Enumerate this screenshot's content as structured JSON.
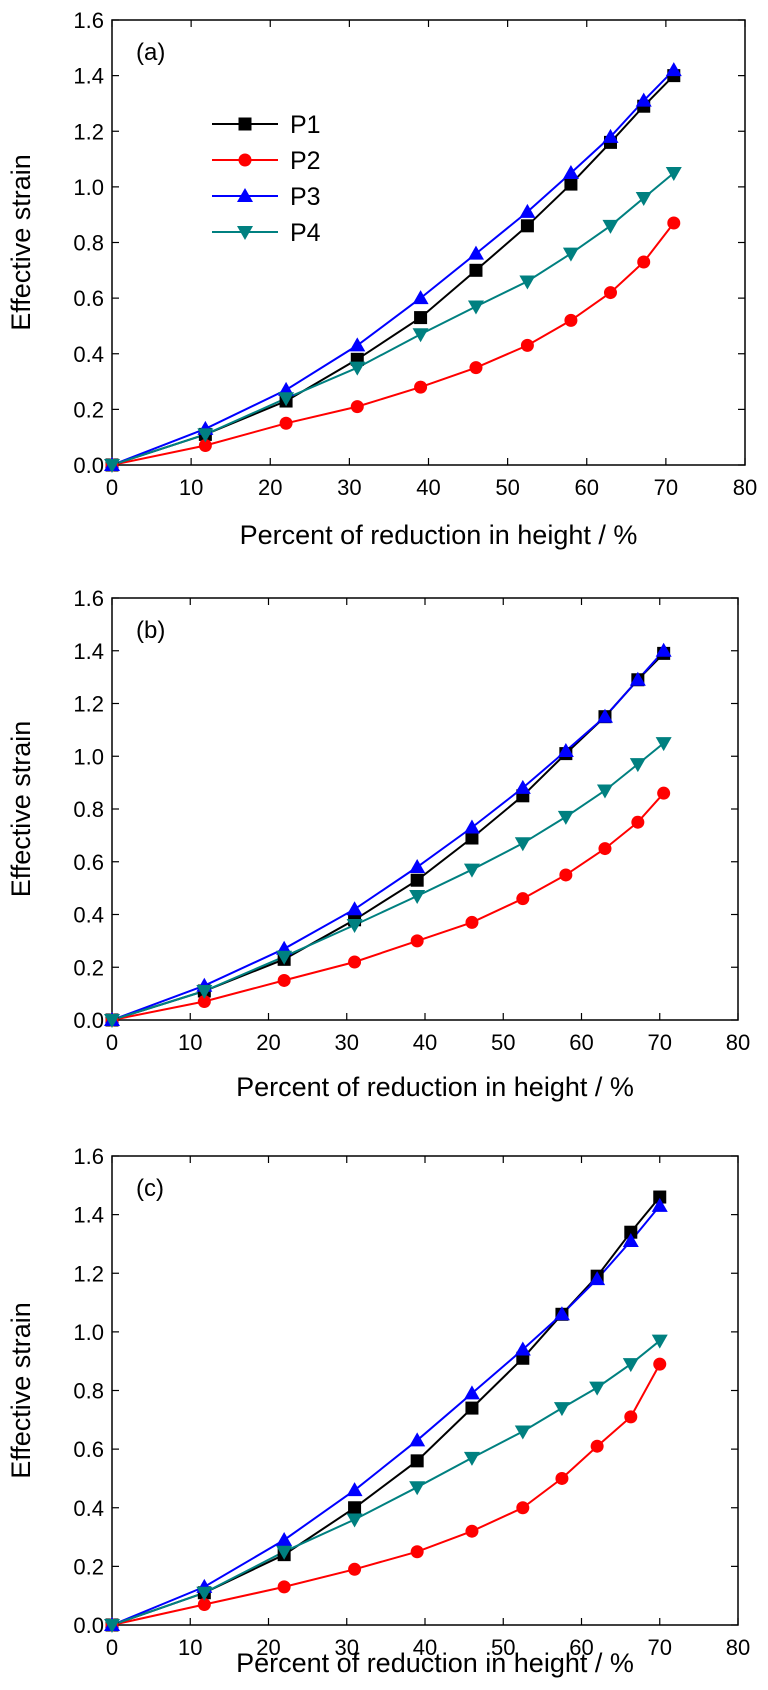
{
  "figure": {
    "colors": {
      "P1": "#000000",
      "P2": "#ff0000",
      "P3": "#0000ff",
      "P4": "#008080"
    },
    "markers": {
      "P1": "square",
      "P2": "circle",
      "P3": "triangle-up",
      "P4": "triangle-down"
    }
  },
  "chart_data": [
    {
      "type": "line",
      "panel_label": "(a)",
      "xlabel": "Percent of reduction in height / %",
      "ylabel": "Effective strain",
      "xlim": [
        0,
        80
      ],
      "ylim": [
        0,
        1.6
      ],
      "xticks": [
        "0",
        "10",
        "20",
        "30",
        "40",
        "50",
        "60",
        "70",
        "80"
      ],
      "yticks": [
        "0.0",
        "0.2",
        "0.4",
        "0.6",
        "0.8",
        "1.0",
        "1.2",
        "1.4",
        "1.6"
      ],
      "legend": {
        "show": true,
        "position": "upper-left"
      },
      "x": [
        0,
        11.8,
        22,
        31,
        39,
        46,
        52.5,
        58,
        63,
        67.2,
        71
      ],
      "series": [
        {
          "name": "P1",
          "values": [
            0,
            0.11,
            0.23,
            0.38,
            0.53,
            0.7,
            0.86,
            1.01,
            1.16,
            1.29,
            1.4
          ]
        },
        {
          "name": "P2",
          "values": [
            0,
            0.07,
            0.15,
            0.21,
            0.28,
            0.35,
            0.43,
            0.52,
            0.62,
            0.73,
            0.87
          ]
        },
        {
          "name": "P3",
          "values": [
            0,
            0.13,
            0.27,
            0.43,
            0.6,
            0.76,
            0.91,
            1.05,
            1.18,
            1.31,
            1.42
          ]
        },
        {
          "name": "P4",
          "values": [
            0,
            0.11,
            0.24,
            0.35,
            0.47,
            0.57,
            0.66,
            0.76,
            0.86,
            0.96,
            1.05
          ]
        }
      ]
    },
    {
      "type": "line",
      "panel_label": "(b)",
      "xlabel": "Percent of reduction in height / %",
      "ylabel": "Effective strain",
      "xlim": [
        0,
        80
      ],
      "ylim": [
        0,
        1.6
      ],
      "xticks": [
        "0",
        "10",
        "20",
        "30",
        "40",
        "50",
        "60",
        "70",
        "80"
      ],
      "yticks": [
        "0.0",
        "0.2",
        "0.4",
        "0.6",
        "0.8",
        "1.0",
        "1.2",
        "1.4",
        "1.6"
      ],
      "legend": {
        "show": false
      },
      "x": [
        0,
        11.8,
        22,
        31,
        39,
        46,
        52.5,
        58,
        63,
        67.2,
        70.5
      ],
      "series": [
        {
          "name": "P1",
          "values": [
            0,
            0.11,
            0.23,
            0.38,
            0.53,
            0.69,
            0.85,
            1.01,
            1.15,
            1.29,
            1.39
          ]
        },
        {
          "name": "P2",
          "values": [
            0,
            0.07,
            0.15,
            0.22,
            0.3,
            0.37,
            0.46,
            0.55,
            0.65,
            0.75,
            0.86
          ]
        },
        {
          "name": "P3",
          "values": [
            0,
            0.13,
            0.27,
            0.42,
            0.58,
            0.73,
            0.88,
            1.02,
            1.15,
            1.29,
            1.4
          ]
        },
        {
          "name": "P4",
          "values": [
            0,
            0.11,
            0.24,
            0.36,
            0.47,
            0.57,
            0.67,
            0.77,
            0.87,
            0.97,
            1.05
          ]
        }
      ]
    },
    {
      "type": "line",
      "panel_label": "(c)",
      "xlabel": "Percent of reduction in height / %",
      "ylabel": "Effective strain",
      "xlim": [
        0,
        80
      ],
      "ylim": [
        0,
        1.6
      ],
      "xticks": [
        "0",
        "10",
        "20",
        "30",
        "40",
        "50",
        "60",
        "70",
        "80"
      ],
      "yticks": [
        "0.0",
        "0.2",
        "0.4",
        "0.6",
        "0.8",
        "1.0",
        "1.2",
        "1.4",
        "1.6"
      ],
      "legend": {
        "show": false
      },
      "x": [
        0,
        11.8,
        22,
        31,
        39,
        46,
        52.5,
        57.5,
        62,
        66.3,
        70
      ],
      "series": [
        {
          "name": "P1",
          "values": [
            0,
            0.11,
            0.24,
            0.4,
            0.56,
            0.74,
            0.91,
            1.06,
            1.19,
            1.34,
            1.46
          ]
        },
        {
          "name": "P2",
          "values": [
            0,
            0.07,
            0.13,
            0.19,
            0.25,
            0.32,
            0.4,
            0.5,
            0.61,
            0.71,
            0.89
          ]
        },
        {
          "name": "P3",
          "values": [
            0,
            0.13,
            0.29,
            0.46,
            0.63,
            0.79,
            0.94,
            1.06,
            1.18,
            1.31,
            1.43
          ]
        },
        {
          "name": "P4",
          "values": [
            0,
            0.11,
            0.25,
            0.36,
            0.47,
            0.57,
            0.66,
            0.74,
            0.81,
            0.89,
            0.97
          ]
        }
      ]
    }
  ]
}
